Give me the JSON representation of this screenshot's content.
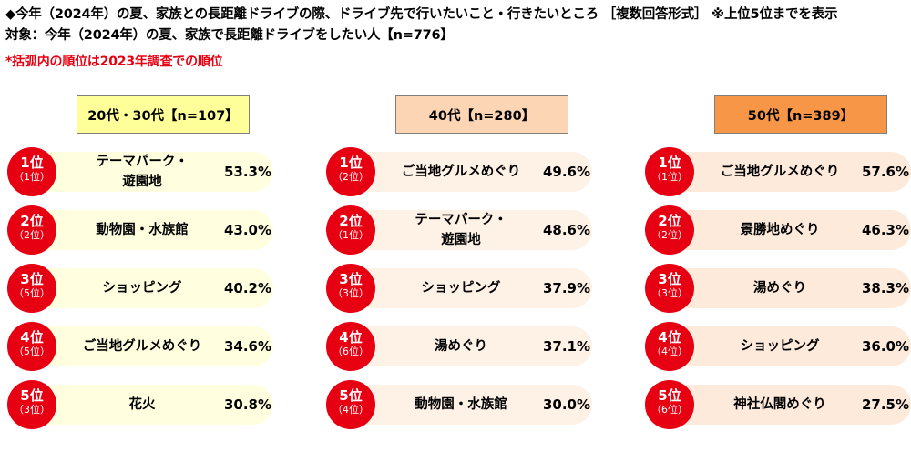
{
  "header": {
    "line1": "◆今年（2024年）の夏、家族との長距離ドライブの際、ドライブ先で行いたいこと・行きたいところ ［複数回答形式］ ※上位5位までを表示",
    "line2": "対象：今年（2024年）の夏、家族で長距離ドライブをしたい人【n=776】",
    "note": "*括弧内の順位は2023年調査での順位"
  },
  "rank_suffix": "位",
  "chart_data": {
    "type": "table",
    "groups": [
      {
        "label": "20代・30代【n=107】",
        "header_color": "#ffff99",
        "row_color": "#ffffe0",
        "rows": [
          {
            "rank": "1",
            "prev_rank": "（1位）",
            "item": "テーマパーク・遊園地",
            "value": 53.3,
            "value_label": "53.3%"
          },
          {
            "rank": "2",
            "prev_rank": "（2位）",
            "item": "動物園・水族館",
            "value": 43.0,
            "value_label": "43.0%"
          },
          {
            "rank": "3",
            "prev_rank": "（5位）",
            "item": "ショッピング",
            "value": 40.2,
            "value_label": "40.2%"
          },
          {
            "rank": "4",
            "prev_rank": "（5位）",
            "item": "ご当地グルメめぐり",
            "value": 34.6,
            "value_label": "34.6%"
          },
          {
            "rank": "5",
            "prev_rank": "（3位）",
            "item": "花火",
            "value": 30.8,
            "value_label": "30.8%"
          }
        ]
      },
      {
        "label": "40代【n=280】",
        "header_color": "#fcd5b4",
        "row_color": "#fef1e6",
        "rows": [
          {
            "rank": "1",
            "prev_rank": "（2位）",
            "item": "ご当地グルメめぐり",
            "value": 49.6,
            "value_label": "49.6%"
          },
          {
            "rank": "2",
            "prev_rank": "（1位）",
            "item": "テーマパーク・遊園地",
            "value": 48.6,
            "value_label": "48.6%"
          },
          {
            "rank": "3",
            "prev_rank": "（3位）",
            "item": "ショッピング",
            "value": 37.9,
            "value_label": "37.9%"
          },
          {
            "rank": "4",
            "prev_rank": "（6位）",
            "item": "湯めぐり",
            "value": 37.1,
            "value_label": "37.1%"
          },
          {
            "rank": "5",
            "prev_rank": "（4位）",
            "item": "動物園・水族館",
            "value": 30.0,
            "value_label": "30.0%"
          }
        ]
      },
      {
        "label": "50代【n=389】",
        "header_color": "#f79646",
        "row_color": "#fdeadb",
        "rows": [
          {
            "rank": "1",
            "prev_rank": "（1位）",
            "item": "ご当地グルメめぐり",
            "value": 57.6,
            "value_label": "57.6%"
          },
          {
            "rank": "2",
            "prev_rank": "（2位）",
            "item": "景勝地めぐり",
            "value": 46.3,
            "value_label": "46.3%"
          },
          {
            "rank": "3",
            "prev_rank": "（3位）",
            "item": "湯めぐり",
            "value": 38.3,
            "value_label": "38.3%"
          },
          {
            "rank": "4",
            "prev_rank": "（4位）",
            "item": "ショッピング",
            "value": 36.0,
            "value_label": "36.0%"
          },
          {
            "rank": "5",
            "prev_rank": "（6位）",
            "item": "神社仏閣めぐり",
            "value": 27.5,
            "value_label": "27.5%"
          }
        ]
      }
    ]
  }
}
